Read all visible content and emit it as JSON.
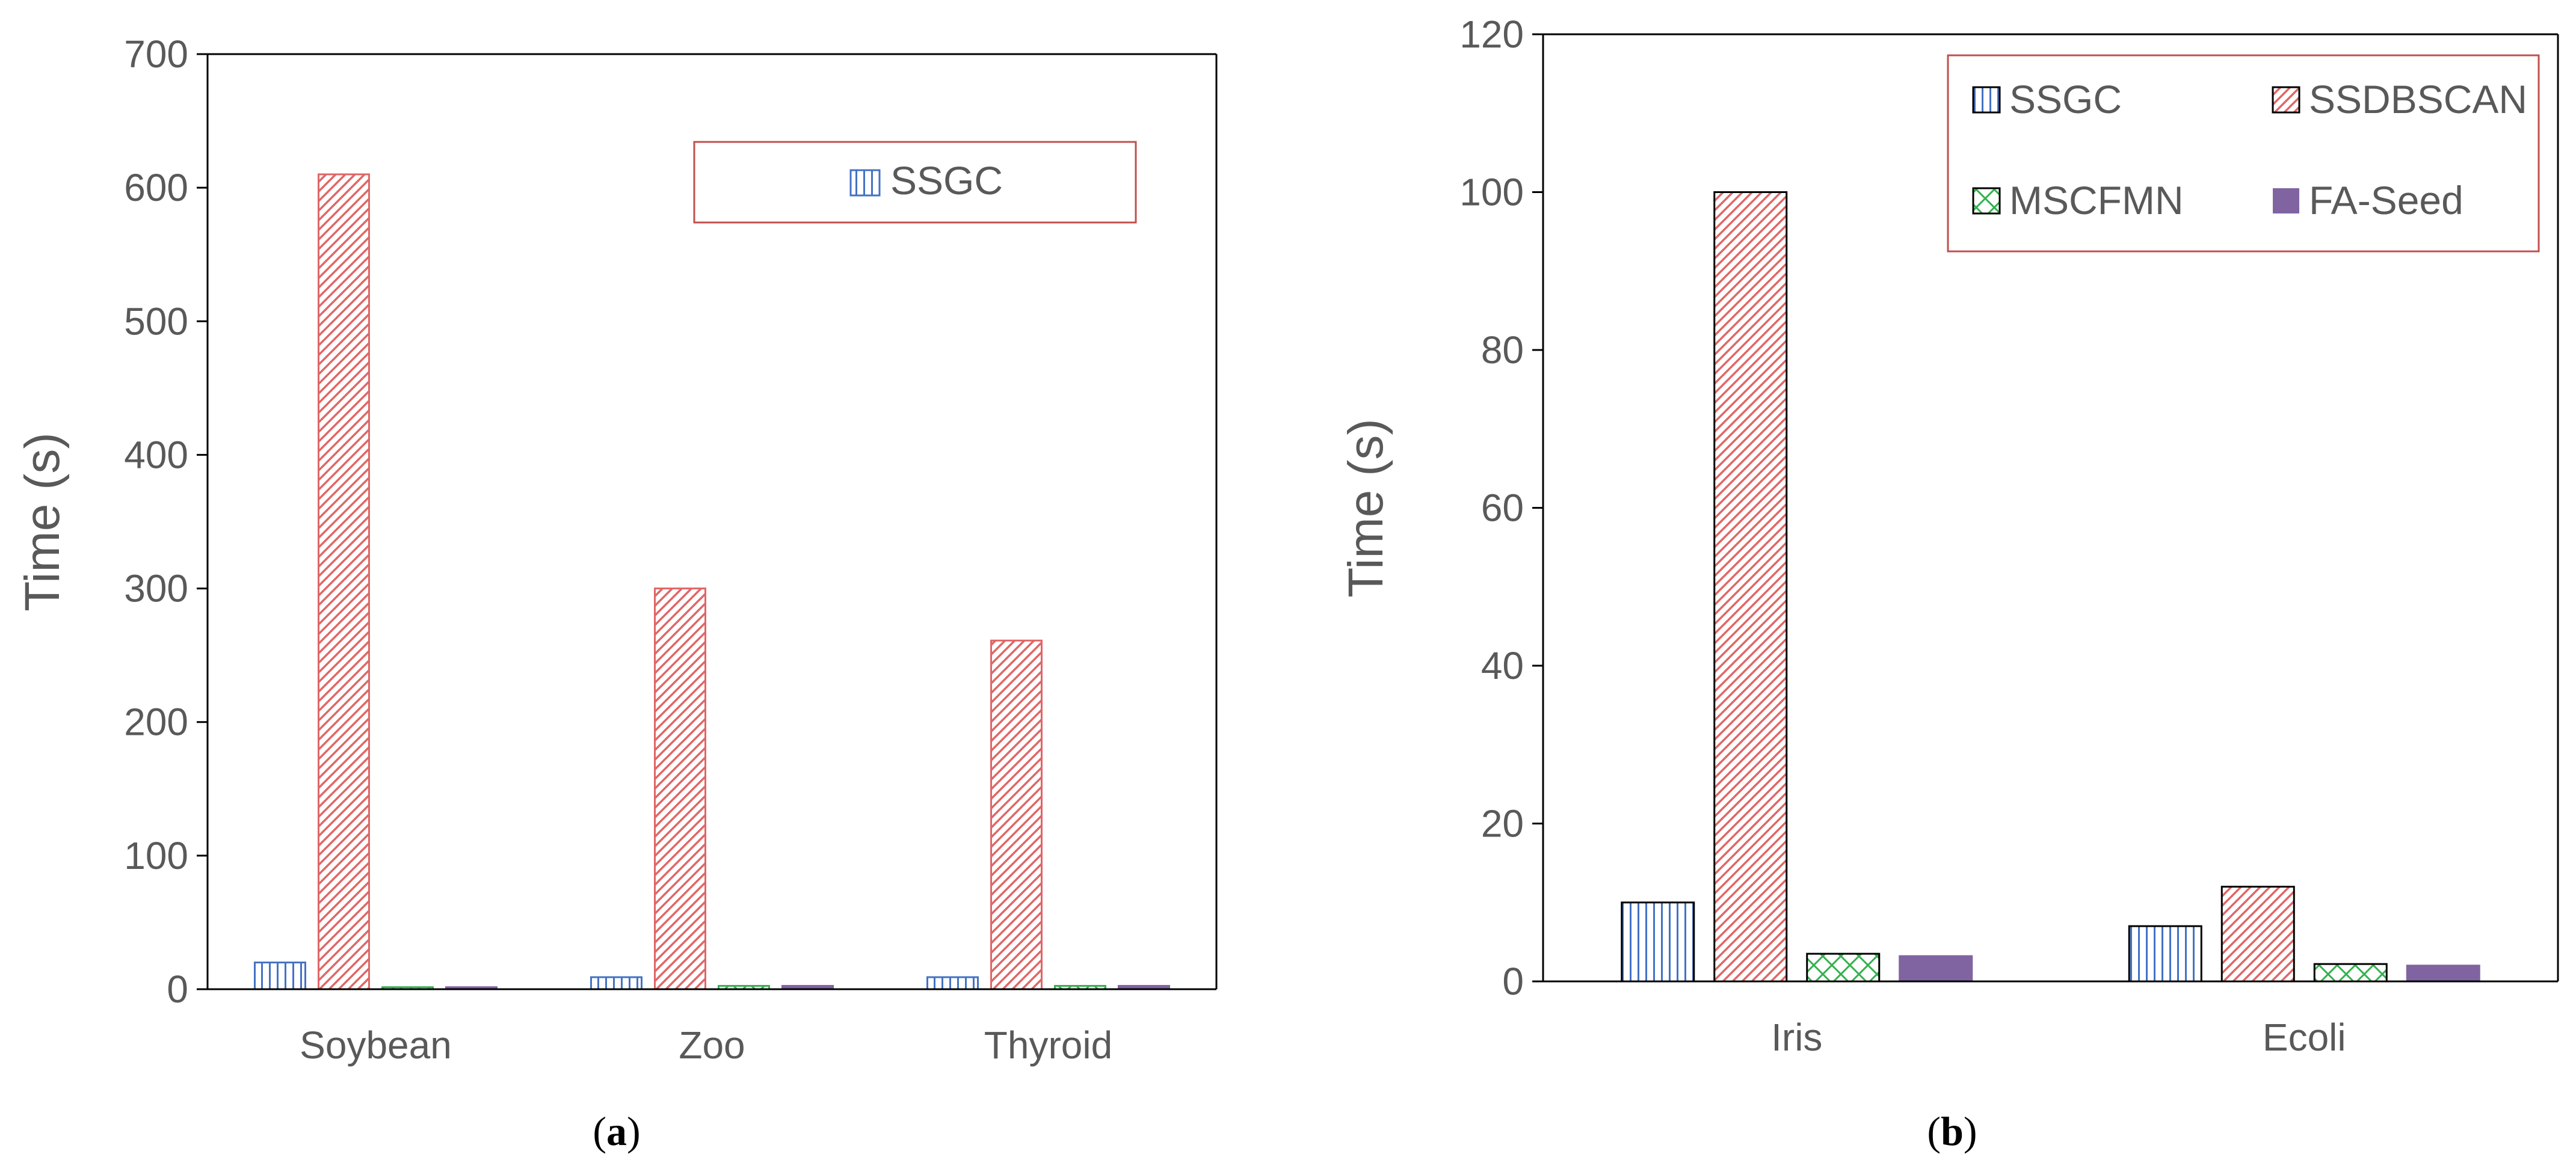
{
  "colors": {
    "ssgc": "#4472c4",
    "ssdbscan": "#e06666",
    "mscfmn": "#33b24c",
    "faseed": "#8064a2",
    "legend_border": "#c0504d",
    "axis": "#000000",
    "text": "#595959"
  },
  "chart_data": [
    {
      "id": "a",
      "type": "bar",
      "title": "",
      "xlabel": "",
      "ylabel": "Time (s)",
      "ylim": [
        0,
        700
      ],
      "yticks": [
        "0",
        "100",
        "200",
        "300",
        "400",
        "500",
        "600",
        "700"
      ],
      "categories": [
        "Soybean",
        "Zoo",
        "Thyroid"
      ],
      "series": [
        {
          "name": "SSGC",
          "values": [
            20,
            9,
            9
          ]
        },
        {
          "name": "SSDBSCAN",
          "values": [
            610,
            300,
            261
          ]
        },
        {
          "name": "MSCFMN",
          "values": [
            1.5,
            2.5,
            2.5
          ]
        },
        {
          "name": "FA-Seed",
          "values": [
            1.5,
            2.5,
            2.5
          ]
        }
      ],
      "legend": [
        "SSGC"
      ],
      "legend_position": "top-right",
      "caption_open": "(",
      "caption_label": "a",
      "caption_close": ")"
    },
    {
      "id": "b",
      "type": "bar",
      "title": "",
      "xlabel": "",
      "ylabel": "Time (s)",
      "ylim": [
        0,
        120
      ],
      "yticks": [
        "0",
        "20",
        "40",
        "60",
        "80",
        "100",
        "120"
      ],
      "categories": [
        "Iris",
        "Ecoli"
      ],
      "series": [
        {
          "name": "SSGC",
          "values": [
            10,
            7
          ]
        },
        {
          "name": "SSDBSCAN",
          "values": [
            100,
            12
          ]
        },
        {
          "name": "MSCFMN",
          "values": [
            3.5,
            2.2
          ]
        },
        {
          "name": "FA-Seed",
          "values": [
            3.2,
            2.0
          ]
        }
      ],
      "legend": [
        "SSGC",
        "SSDBSCAN",
        "MSCFMN",
        "FA-Seed"
      ],
      "legend_position": "top-right",
      "caption_open": "(",
      "caption_label": "b",
      "caption_close": ")"
    }
  ]
}
